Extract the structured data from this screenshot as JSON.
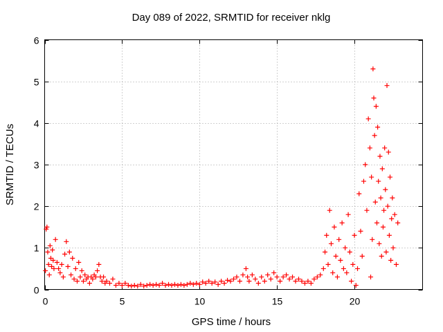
{
  "chart_data": {
    "type": "scatter",
    "title": "Day 089 of 2022, SRMTID for receiver nklg",
    "xlabel": "GPS time / hours",
    "ylabel": "SRMTID / TECUs",
    "xlim": [
      0,
      24.4
    ],
    "ylim": [
      0,
      6
    ],
    "xticks": [
      0,
      5,
      10,
      15,
      20
    ],
    "yticks": [
      0,
      1,
      2,
      3,
      4,
      5,
      6
    ],
    "xtick_labels": [
      "0",
      "5",
      "10",
      "15",
      "20"
    ],
    "ytick_labels": [
      "0",
      "1",
      "2",
      "3",
      "4",
      "5",
      "6"
    ],
    "grid": true,
    "marker": "+",
    "series": [
      {
        "name": "SRMTID",
        "color": "#ff0000",
        "points": [
          [
            0.05,
            0.45
          ],
          [
            0.1,
            1.45
          ],
          [
            0.15,
            1.5
          ],
          [
            0.2,
            0.9
          ],
          [
            0.25,
            0.6
          ],
          [
            0.3,
            0.35
          ],
          [
            0.35,
            1.05
          ],
          [
            0.4,
            0.75
          ],
          [
            0.45,
            0.55
          ],
          [
            0.5,
            0.95
          ],
          [
            0.55,
            0.7
          ],
          [
            0.6,
            0.5
          ],
          [
            0.7,
            1.2
          ],
          [
            0.8,
            0.65
          ],
          [
            0.9,
            0.5
          ],
          [
            1.0,
            0.4
          ],
          [
            1.1,
            0.6
          ],
          [
            1.2,
            0.3
          ],
          [
            1.3,
            0.85
          ],
          [
            1.4,
            1.15
          ],
          [
            1.5,
            0.55
          ],
          [
            1.6,
            0.9
          ],
          [
            1.7,
            0.35
          ],
          [
            1.8,
            0.75
          ],
          [
            1.9,
            0.25
          ],
          [
            2.0,
            0.5
          ],
          [
            2.1,
            0.2
          ],
          [
            2.2,
            0.65
          ],
          [
            2.3,
            0.3
          ],
          [
            2.4,
            0.45
          ],
          [
            2.5,
            0.2
          ],
          [
            2.6,
            0.35
          ],
          [
            2.7,
            0.25
          ],
          [
            2.8,
            0.3
          ],
          [
            2.9,
            0.15
          ],
          [
            3.0,
            0.3
          ],
          [
            3.1,
            0.25
          ],
          [
            3.2,
            0.35
          ],
          [
            3.3,
            0.3
          ],
          [
            3.4,
            0.45
          ],
          [
            3.5,
            0.6
          ],
          [
            3.6,
            0.3
          ],
          [
            3.7,
            0.2
          ],
          [
            3.8,
            0.3
          ],
          [
            3.9,
            0.15
          ],
          [
            4.0,
            0.2
          ],
          [
            4.2,
            0.15
          ],
          [
            4.4,
            0.25
          ],
          [
            4.6,
            0.1
          ],
          [
            4.8,
            0.15
          ],
          [
            5.0,
            0.1
          ],
          [
            5.2,
            0.15
          ],
          [
            5.4,
            0.1
          ],
          [
            5.6,
            0.08
          ],
          [
            5.8,
            0.1
          ],
          [
            6.0,
            0.08
          ],
          [
            6.2,
            0.12
          ],
          [
            6.4,
            0.08
          ],
          [
            6.6,
            0.1
          ],
          [
            6.8,
            0.12
          ],
          [
            7.0,
            0.1
          ],
          [
            7.2,
            0.12
          ],
          [
            7.4,
            0.1
          ],
          [
            7.6,
            0.15
          ],
          [
            7.8,
            0.1
          ],
          [
            8.0,
            0.12
          ],
          [
            8.2,
            0.1
          ],
          [
            8.4,
            0.12
          ],
          [
            8.6,
            0.1
          ],
          [
            8.8,
            0.12
          ],
          [
            9.0,
            0.1
          ],
          [
            9.2,
            0.12
          ],
          [
            9.4,
            0.15
          ],
          [
            9.6,
            0.12
          ],
          [
            9.8,
            0.15
          ],
          [
            10.0,
            0.12
          ],
          [
            10.2,
            0.18
          ],
          [
            10.4,
            0.15
          ],
          [
            10.6,
            0.2
          ],
          [
            10.8,
            0.15
          ],
          [
            11.0,
            0.18
          ],
          [
            11.2,
            0.12
          ],
          [
            11.4,
            0.2
          ],
          [
            11.6,
            0.15
          ],
          [
            11.8,
            0.22
          ],
          [
            12.0,
            0.2
          ],
          [
            12.2,
            0.25
          ],
          [
            12.4,
            0.3
          ],
          [
            12.6,
            0.2
          ],
          [
            12.8,
            0.35
          ],
          [
            13.0,
            0.5
          ],
          [
            13.1,
            0.3
          ],
          [
            13.2,
            0.2
          ],
          [
            13.4,
            0.35
          ],
          [
            13.6,
            0.25
          ],
          [
            13.8,
            0.15
          ],
          [
            14.0,
            0.3
          ],
          [
            14.2,
            0.2
          ],
          [
            14.4,
            0.35
          ],
          [
            14.6,
            0.25
          ],
          [
            14.8,
            0.4
          ],
          [
            15.0,
            0.3
          ],
          [
            15.2,
            0.2
          ],
          [
            15.4,
            0.3
          ],
          [
            15.6,
            0.35
          ],
          [
            15.8,
            0.25
          ],
          [
            16.0,
            0.3
          ],
          [
            16.2,
            0.2
          ],
          [
            16.4,
            0.25
          ],
          [
            16.6,
            0.2
          ],
          [
            16.8,
            0.15
          ],
          [
            17.0,
            0.2
          ],
          [
            17.2,
            0.15
          ],
          [
            17.4,
            0.25
          ],
          [
            17.6,
            0.3
          ],
          [
            17.8,
            0.35
          ],
          [
            18.0,
            0.5
          ],
          [
            18.1,
            0.9
          ],
          [
            18.2,
            1.3
          ],
          [
            18.3,
            0.6
          ],
          [
            18.4,
            1.9
          ],
          [
            18.5,
            1.1
          ],
          [
            18.6,
            0.4
          ],
          [
            18.7,
            1.5
          ],
          [
            18.8,
            0.8
          ],
          [
            18.9,
            0.3
          ],
          [
            19.0,
            1.2
          ],
          [
            19.1,
            0.7
          ],
          [
            19.2,
            1.6
          ],
          [
            19.3,
            0.5
          ],
          [
            19.4,
            1.0
          ],
          [
            19.5,
            0.4
          ],
          [
            19.6,
            1.8
          ],
          [
            19.7,
            0.9
          ],
          [
            19.8,
            0.2
          ],
          [
            19.9,
            0.6
          ],
          [
            20.0,
            1.3
          ],
          [
            20.1,
            0.1
          ],
          [
            20.2,
            0.5
          ],
          [
            20.3,
            2.3
          ],
          [
            20.4,
            1.4
          ],
          [
            20.5,
            0.8
          ],
          [
            20.6,
            2.6
          ],
          [
            20.7,
            3.0
          ],
          [
            20.8,
            1.9
          ],
          [
            20.9,
            4.1
          ],
          [
            21.0,
            3.4
          ],
          [
            21.05,
            0.3
          ],
          [
            21.1,
            2.7
          ],
          [
            21.15,
            1.2
          ],
          [
            21.2,
            5.3
          ],
          [
            21.25,
            4.6
          ],
          [
            21.3,
            3.7
          ],
          [
            21.35,
            2.1
          ],
          [
            21.4,
            4.4
          ],
          [
            21.45,
            1.6
          ],
          [
            21.5,
            3.9
          ],
          [
            21.55,
            2.6
          ],
          [
            21.6,
            1.1
          ],
          [
            21.65,
            3.2
          ],
          [
            21.7,
            2.2
          ],
          [
            21.75,
            0.8
          ],
          [
            21.8,
            2.9
          ],
          [
            21.85,
            1.5
          ],
          [
            21.9,
            1.9
          ],
          [
            21.95,
            3.4
          ],
          [
            22.0,
            2.4
          ],
          [
            22.05,
            0.9
          ],
          [
            22.1,
            4.9
          ],
          [
            22.15,
            2.0
          ],
          [
            22.2,
            3.3
          ],
          [
            22.25,
            1.3
          ],
          [
            22.3,
            2.7
          ],
          [
            22.35,
            0.7
          ],
          [
            22.4,
            1.7
          ],
          [
            22.45,
            2.2
          ],
          [
            22.5,
            1.0
          ],
          [
            22.6,
            1.8
          ],
          [
            22.7,
            0.6
          ],
          [
            22.8,
            1.6
          ]
        ]
      }
    ]
  }
}
